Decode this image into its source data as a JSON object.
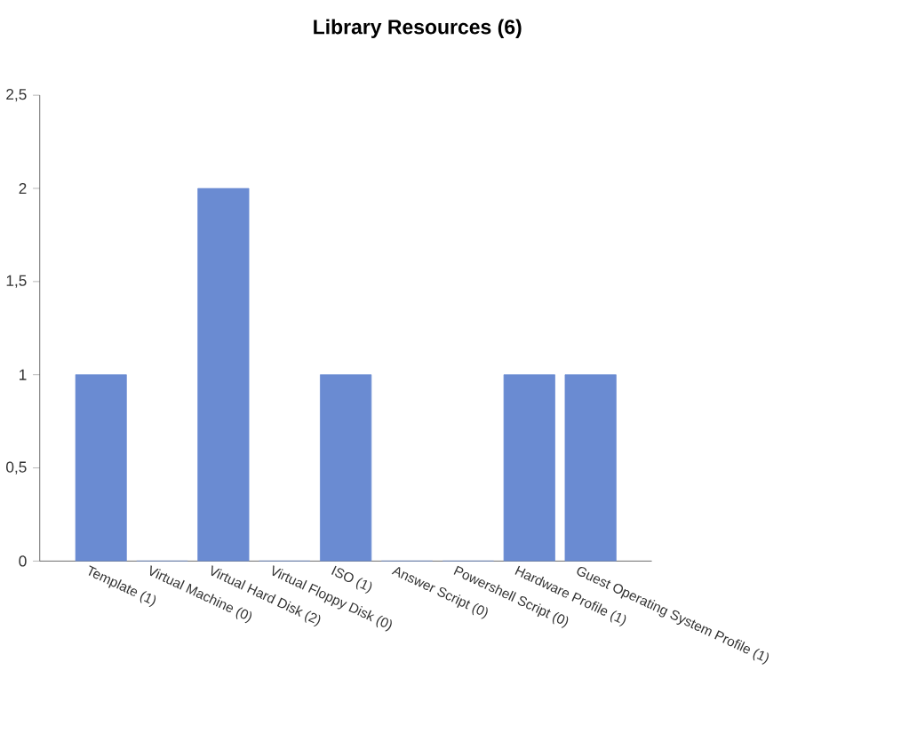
{
  "chart_data": {
    "type": "bar",
    "title": "Library Resources (6)",
    "categories": [
      "Template (1)",
      "Virtual Machine (0)",
      "Virtual Hard Disk (2)",
      "Virtual Floppy Disk (0)",
      "ISO (1)",
      "Answer Script (0)",
      "Powershell Script (0)",
      "Hardware Profile (1)",
      "Guest Operating System Profile (1)"
    ],
    "values": [
      1,
      0,
      2,
      0,
      1,
      0,
      0,
      1,
      1
    ],
    "color": "#6a8bd2",
    "ylim": [
      0,
      2.5
    ],
    "yticks": [
      0,
      {
        "value": 0.5,
        "label": "0,5"
      },
      1,
      {
        "value": 1.5,
        "label": "1,5"
      },
      2,
      {
        "value": 2.5,
        "label": "2,5"
      }
    ]
  }
}
